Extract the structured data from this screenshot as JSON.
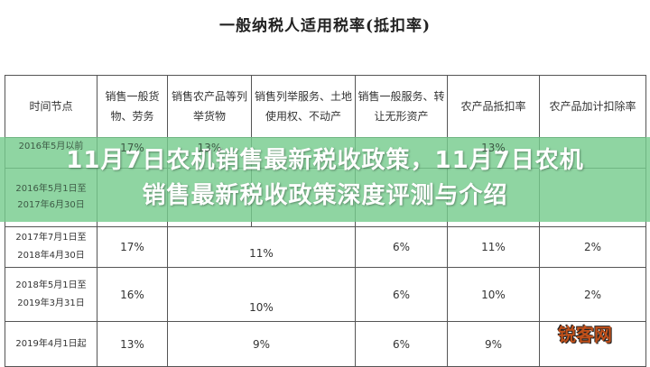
{
  "title": "一般纳税人适用税率(抵扣率)",
  "headers": [
    "时间节点",
    "销售一般货物、劳务",
    "销售农产品等列举货物",
    "销售列举服务、土地使用权、不动产",
    "销售一般服务、转让无形资产",
    "农产品抵扣率",
    "农产品加计扣除率"
  ],
  "rows": [
    {
      "time": "2016年5月以前",
      "c1": "17%",
      "c2": "13%",
      "c3": "",
      "c4": "",
      "c5": "13%",
      "c6": ""
    },
    {
      "time": "2016年5月1日至2017年6月30日",
      "c1": "",
      "c2": "",
      "c3": "",
      "c4": "",
      "c5": "",
      "c6": ""
    },
    {
      "time": "2017年7月1日至2018年4月30日",
      "c1": "17%",
      "c23": "11%",
      "c4": "6%",
      "c5": "11%",
      "c6": "2%"
    },
    {
      "time": "2018年5月1日至2019年3月31日",
      "c1": "16%",
      "c23": "10%",
      "c4": "6%",
      "c5": "10%",
      "c6": "2%"
    },
    {
      "time": "2019年4月1日起",
      "c1": "13%",
      "c23": "9%",
      "c4": "6%",
      "c5": "9%",
      "c6": ""
    }
  ],
  "banner": {
    "line1": "11月7日农机销售最新税收政策，11月7日农机",
    "line2": "销售最新税收政策深度评测与介绍"
  },
  "watermark": "锐客网",
  "colors": {
    "banner": "#76cc8e"
  }
}
